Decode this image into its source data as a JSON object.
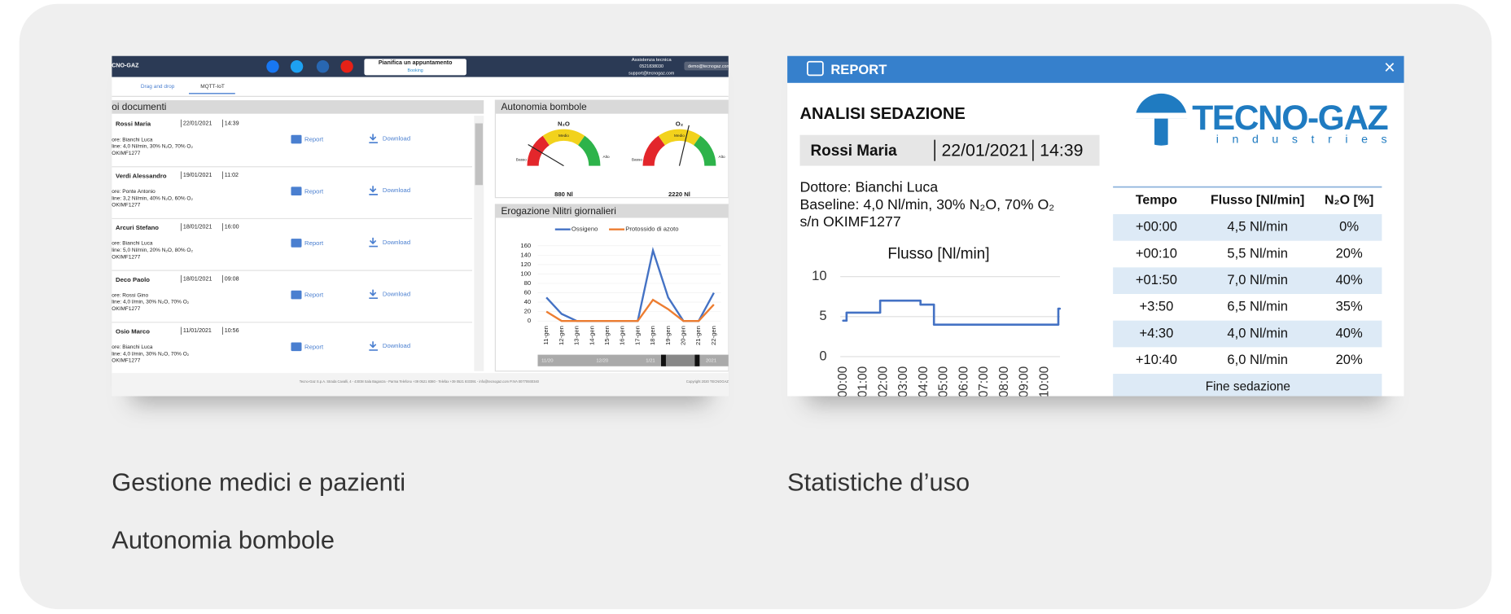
{
  "captions": [
    "Gestione medici e pazienti",
    "Autonomia bombole",
    "Statistiche d’uso"
  ],
  "left": {
    "header": {
      "brand": "CNO-GAZ",
      "appointment": "Pianifica un appuntamento",
      "booking": "Booking",
      "support_title": "Assistenza tecnica",
      "phone": "0521838030",
      "email": "support@tecnogaz.com",
      "user": "demo@tecnogaz.com"
    },
    "tabs": [
      "Drag and drop",
      "MQTT-IoT"
    ],
    "documents": {
      "title": "oi documenti",
      "report": "Report",
      "download": "Download",
      "items": [
        {
          "name": "Rossi Maria",
          "date": "22/01/2021",
          "time": "14:39",
          "doctor": "ore: Bianchi Luca",
          "baseline": "line: 4,0 Nl/min, 30% N₂O, 70% O₂",
          "serial": "OKIMF1277"
        },
        {
          "name": "Verdi Alessandro",
          "date": "19/01/2021",
          "time": "11:02",
          "doctor": "ore: Ponte Antonio",
          "baseline": "line: 3,2 Nl/min, 40% N₂O, 60% O₂",
          "serial": "OKIMF1277"
        },
        {
          "name": "Arcuri Stefano",
          "date": "18/01/2021",
          "time": "16:00",
          "doctor": "ore: Bianchi Luca",
          "baseline": "line: 5,0 Nl/min, 20% N₂O, 80% O₂",
          "serial": "OKIMF1277"
        },
        {
          "name": "Deco Paolo",
          "date": "18/01/2021",
          "time": "09:08",
          "doctor": "ore: Rossi Gino",
          "baseline": "line: 4,0 l/min, 30% N₂O, 70% O₂",
          "serial": "OKIMF1277"
        },
        {
          "name": "Osio Marco",
          "date": "11/01/2021",
          "time": "10:56",
          "doctor": "ore: Bianchi Luca",
          "baseline": "line: 4,0 l/min, 30% N₂O, 70% O₂",
          "serial": "OKIMF1277"
        }
      ]
    },
    "gauges": {
      "title": "Autonomia bombole",
      "low": "Basso",
      "mid": "Medio",
      "high": "Alto",
      "items": [
        {
          "gas": "N₂O",
          "value": "880 Nl"
        },
        {
          "gas": "O₂",
          "value": "2220 Nl"
        }
      ]
    },
    "chart": {
      "type": "line",
      "title": "Erogazione Nlitri giornalieri",
      "categories": [
        "11-gen",
        "12-gen",
        "13-gen",
        "14-gen",
        "15-gen",
        "16-gen",
        "17-gen",
        "18-gen",
        "19-gen",
        "20-gen",
        "21-gen",
        "22-gen"
      ],
      "series": [
        {
          "name": "Ossigeno",
          "color": "#4472c4",
          "values": [
            50,
            15,
            0,
            0,
            0,
            0,
            0,
            150,
            50,
            0,
            0,
            60
          ]
        },
        {
          "name": "Protossido di azoto",
          "color": "#ed7d31",
          "values": [
            20,
            0,
            0,
            0,
            0,
            0,
            0,
            45,
            25,
            0,
            0,
            35
          ]
        }
      ],
      "ylim": [
        0,
        160
      ],
      "yticks": [
        0,
        20,
        40,
        60,
        80,
        100,
        120,
        140,
        160
      ]
    },
    "slider": [
      "11/20",
      "12/20",
      "1/21",
      "2021"
    ],
    "footer": "Tecno-Gaz S.p.A. Strada Cavalli, 4 - 43038 Sala Baganza - Parma Telefono +39 0521 8380 - Telefax +39 0521 833391 - info@tecnogaz.com P.IVA 00770930340",
    "copyright": "Copyright 2020 TECNOGAZ"
  },
  "right": {
    "window_title": "REPORT",
    "close": "×",
    "heading": "ANALISI SEDAZIONE",
    "patient": "Rossi Maria",
    "date": "22/01/2021",
    "time": "14:39",
    "doctor": "Dottore: Bianchi Luca",
    "baseline": "Baseline: 4,0 Nl/min, 30% N₂O, 70% O₂",
    "serial": "s/n OKIMF1277",
    "logo": {
      "name": "TECNO-GAZ",
      "tagline": "industries"
    },
    "chart": {
      "type": "step",
      "title": "Flusso [Nl/min]",
      "color": "#4472c4",
      "x": [
        0,
        10,
        110,
        230,
        270,
        640
      ],
      "values": [
        4.5,
        5.5,
        7,
        6.5,
        4,
        6
      ],
      "xlim": [
        0,
        645
      ],
      "xticks": [
        {
          "value": 0,
          "label": "00:00"
        },
        {
          "value": 60,
          "label": "01:00"
        },
        {
          "value": 120,
          "label": "02:00"
        },
        {
          "value": 180,
          "label": "03:00"
        },
        {
          "value": 240,
          "label": "04:00"
        },
        {
          "value": 300,
          "label": "05:00"
        },
        {
          "value": 360,
          "label": "06:00"
        },
        {
          "value": 420,
          "label": "07:00"
        },
        {
          "value": 480,
          "label": "08:00"
        },
        {
          "value": 540,
          "label": "09:00"
        },
        {
          "value": 600,
          "label": "10:00"
        }
      ],
      "ylim": [
        0,
        10
      ],
      "yticks": [
        0,
        5,
        10
      ],
      "grid": true
    },
    "table": {
      "headers": [
        "Tempo",
        "Flusso [Nl/min]",
        "N₂O [%]"
      ],
      "rows": [
        [
          "+00:00",
          "4,5 Nl/min",
          "0%"
        ],
        [
          "+00:10",
          "5,5 Nl/min",
          "20%"
        ],
        [
          "+01:50",
          "7,0 Nl/min",
          "40%"
        ],
        [
          "+3:50",
          "6,5 Nl/min",
          "35%"
        ],
        [
          "+4:30",
          "4,0 Nl/min",
          "40%"
        ],
        [
          "+10:40",
          "6,0 Nl/min",
          "20%"
        ]
      ],
      "footer": "Fine sedazione"
    }
  }
}
